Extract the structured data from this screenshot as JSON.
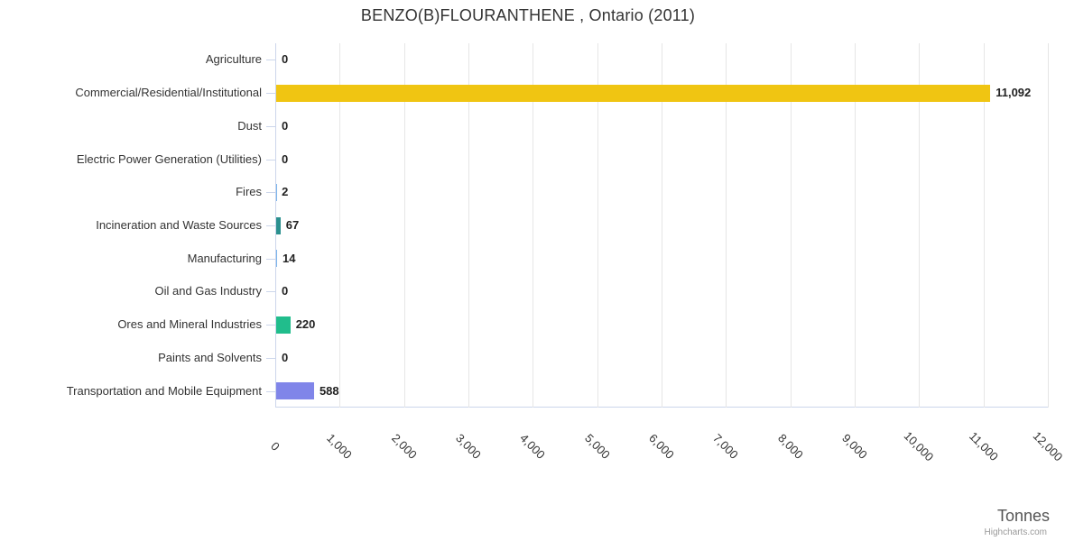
{
  "chart_data": {
    "type": "bar",
    "orientation": "horizontal",
    "title": "BENZO(B)FLOURANTHENE , Ontario (2011)",
    "categories": [
      "Agriculture",
      "Commercial/Residential/Institutional",
      "Dust",
      "Electric Power Generation (Utilities)",
      "Fires",
      "Incineration and Waste Sources",
      "Manufacturing",
      "Oil and Gas Industry",
      "Ores and Mineral Industries",
      "Paints and Solvents",
      "Transportation and Mobile Equipment"
    ],
    "values": [
      0,
      11092,
      0,
      0,
      2,
      67,
      14,
      0,
      220,
      0,
      588
    ],
    "data_labels": [
      "0",
      "11,092",
      "0",
      "0",
      "2",
      "67",
      "14",
      "0",
      "220",
      "0",
      "588"
    ],
    "bar_colors": [
      "#7cb5ec",
      "#f0c512",
      "#7cb5ec",
      "#7cb5ec",
      "#7cb5ec",
      "#2b908f",
      "#7cb5ec",
      "#7cb5ec",
      "#21bd8c",
      "#7cb5ec",
      "#8085e9"
    ],
    "xlabel": "Tonnes",
    "xlim": [
      0,
      12000
    ],
    "tick_interval": 1000,
    "x_tick_labels": [
      "0",
      "1,000",
      "2,000",
      "3,000",
      "4,000",
      "5,000",
      "6,000",
      "7,000",
      "8,000",
      "9,000",
      "10,000",
      "11,000",
      "12,000"
    ],
    "grid": true,
    "legend": false
  },
  "credits": {
    "label": "Highcharts.com"
  },
  "colors": {
    "background": "#ffffff",
    "grid": "#e6e6e6",
    "axis_line": "#ccd6eb",
    "title_text": "#333333",
    "category_label_text": "#333333",
    "data_label_text": "#222222",
    "axis_title_text": "#555555",
    "credits_text": "#999999"
  }
}
